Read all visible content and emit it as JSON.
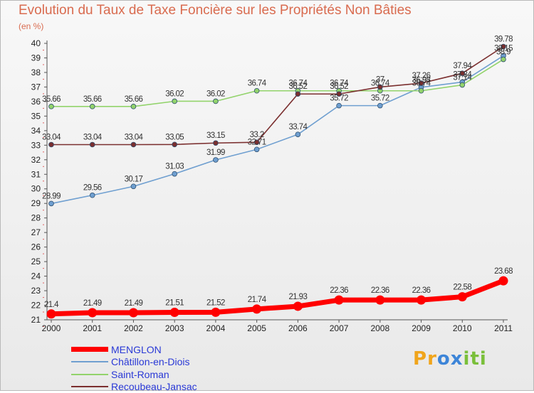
{
  "title": "Evolution du Taux de Taxe Foncière sur les Propriétés Non Bâties",
  "unit": "(en %)",
  "logo": {
    "letters": [
      "P",
      "r",
      "o",
      "x",
      "i",
      "t",
      "i"
    ],
    "colors": [
      "#f0a51c",
      "#f0a51c",
      "#3d85d8",
      "#3d85d8",
      "#7abf3a",
      "#7abf3a",
      "#7abf3a"
    ]
  },
  "chart_data": {
    "type": "line",
    "x": [
      "2000",
      "2001",
      "2002",
      "2003",
      "2004",
      "2005",
      "2006",
      "2007",
      "2008",
      "2009",
      "2010",
      "2011"
    ],
    "ylim": [
      21,
      40
    ],
    "yticks": [
      "21",
      "22",
      "23",
      "24",
      "25",
      "26",
      "27",
      "28",
      "29",
      "30",
      "31",
      "32",
      "33",
      "34",
      "35",
      "36",
      "37",
      "38",
      "39",
      "40"
    ],
    "grid": false,
    "legend_position": "bottom-left",
    "series": [
      {
        "name": "MENGLON",
        "color": "#ff0000",
        "values": [
          21.4,
          21.49,
          21.49,
          21.51,
          21.52,
          21.74,
          21.93,
          22.36,
          22.36,
          22.36,
          22.58,
          23.68
        ],
        "labels": [
          "21.4",
          "21.49",
          "21.49",
          "21.51",
          "21.52",
          "21.74",
          "21.93",
          "22.36",
          "22.36",
          "22.36",
          "22.58",
          "23.68"
        ]
      },
      {
        "name": "Châtillon-en-Diois",
        "color": "#6f9fd0",
        "values": [
          28.99,
          29.56,
          30.17,
          31.03,
          31.99,
          32.71,
          33.74,
          35.72,
          35.72,
          36.98,
          37.34,
          39.15
        ],
        "labels": [
          "28.99",
          "29.56",
          "30.17",
          "31.03",
          "31.99",
          "32.71",
          "33.74",
          "35.72",
          "35.72",
          "36.98",
          "37.34",
          "39.15"
        ]
      },
      {
        "name": "Saint-Roman",
        "color": "#92d36b",
        "values": [
          35.66,
          35.66,
          35.66,
          36.02,
          36.02,
          36.74,
          36.74,
          36.74,
          36.74,
          36.74,
          37.14,
          38.9
        ],
        "labels": [
          "35.66",
          "35.66",
          "35.66",
          "36.02",
          "36.02",
          "36.74",
          "36.74",
          "36.74",
          "36.74",
          "36.74",
          "37.14",
          "38.9"
        ]
      },
      {
        "name": "Recoubeau-Jansac",
        "color": "#7b2f2f",
        "values": [
          33.04,
          33.04,
          33.04,
          33.05,
          33.15,
          33.2,
          36.52,
          36.52,
          37,
          37.26,
          37.94,
          39.78
        ],
        "labels": [
          "33.04",
          "33.04",
          "33.04",
          "33.05",
          "33.15",
          "33.2",
          "36.52",
          "36.52",
          "37",
          "37.26",
          "37.94",
          "39.78"
        ]
      }
    ]
  }
}
